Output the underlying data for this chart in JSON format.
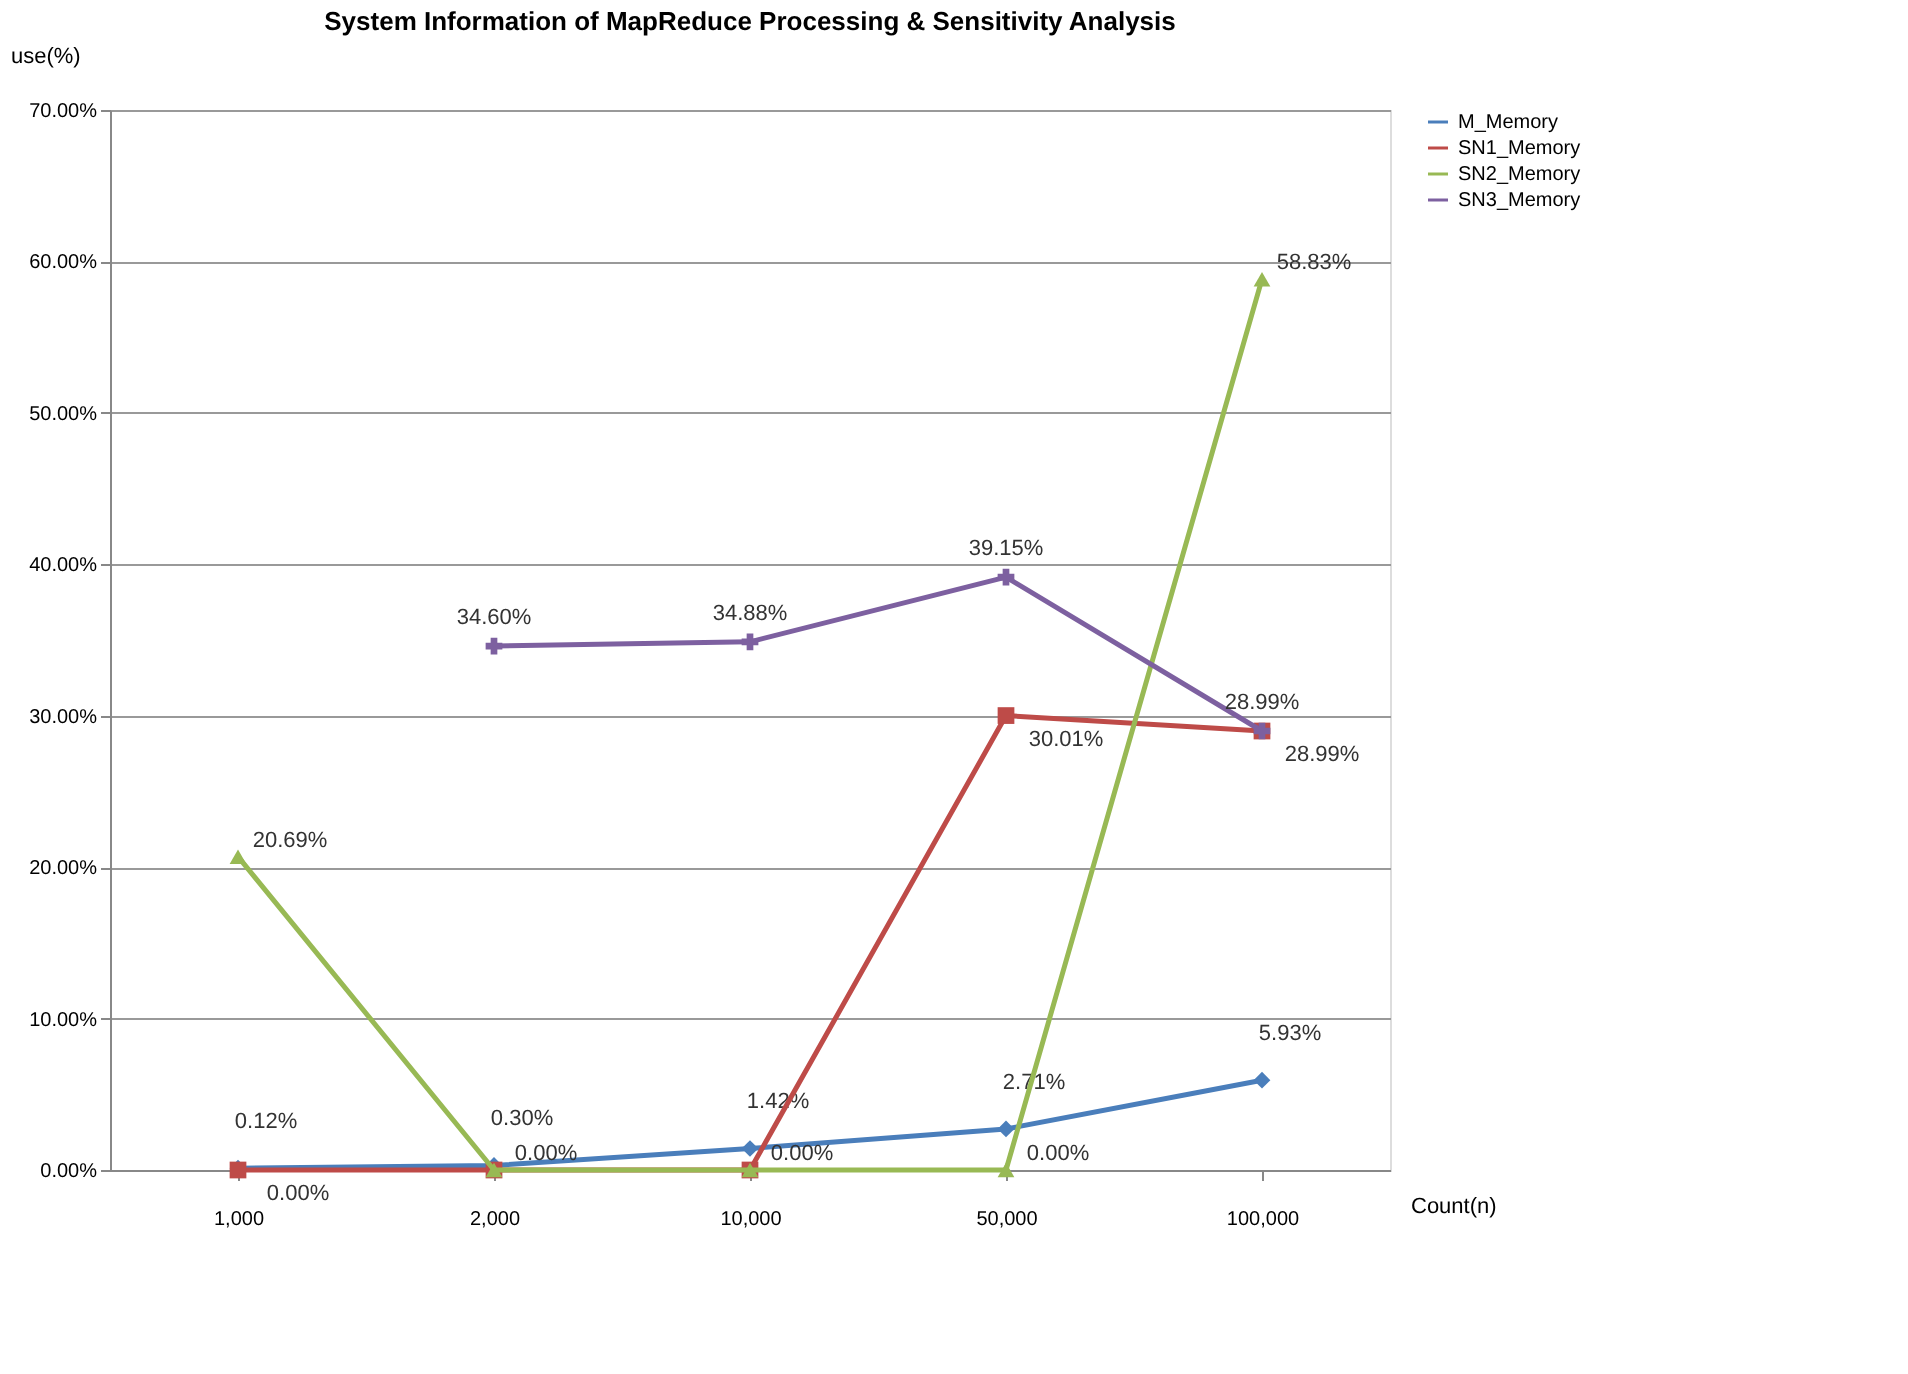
{
  "chart_data": {
    "type": "line",
    "title": "System Information of MapReduce Processing & Sensitivity Analysis",
    "xlabel": "Count(n)",
    "ylabel": "use(%)",
    "categories": [
      "1,000",
      "2,000",
      "10,000",
      "50,000",
      "100,000"
    ],
    "series": [
      {
        "name": "M_Memory",
        "color": "#4a7ebb",
        "marker": "diamond",
        "values": [
          0.12,
          0.3,
          1.42,
          2.71,
          5.93
        ],
        "value_labels": [
          "0.12%",
          "0.30%",
          "1.42%",
          "2.71%",
          "5.93%"
        ]
      },
      {
        "name": "SN1_Memory",
        "color": "#be4b48",
        "marker": "square",
        "values": [
          0.0,
          0.0,
          0.0,
          30.01,
          28.99
        ],
        "value_labels": [
          "0.00%",
          null,
          null,
          "30.01%",
          "28.99%"
        ]
      },
      {
        "name": "SN2_Memory",
        "color": "#98b954",
        "marker": "triangle",
        "values": [
          20.69,
          0.0,
          0.0,
          0.0,
          58.83
        ],
        "value_labels": [
          "20.69%",
          "0.00%",
          "0.00%",
          "0.00%",
          "58.83%"
        ]
      },
      {
        "name": "SN3_Memory",
        "color": "#7d60a0",
        "marker": "cross",
        "values": [
          null,
          34.6,
          34.88,
          39.15,
          28.99
        ],
        "value_labels": [
          null,
          "34.60%",
          "34.88%",
          "39.15%",
          "28.99%"
        ]
      }
    ],
    "ylim": [
      0,
      70
    ],
    "yticks": [
      {
        "value": 0,
        "label": "0.00%"
      },
      {
        "value": 10,
        "label": "10.00%"
      },
      {
        "value": 20,
        "label": "20.00%"
      },
      {
        "value": 30,
        "label": "30.00%"
      },
      {
        "value": 40,
        "label": "40.00%"
      },
      {
        "value": 50,
        "label": "50.00%"
      },
      {
        "value": 60,
        "label": "60.00%"
      },
      {
        "value": 70,
        "label": "70.00%"
      }
    ],
    "grid": "y",
    "legend": "right",
    "line_style": "solid"
  }
}
